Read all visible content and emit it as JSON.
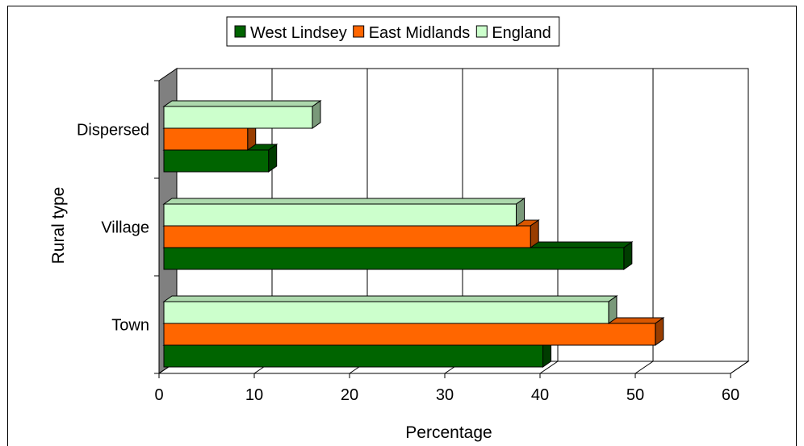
{
  "chart_data": {
    "type": "bar",
    "orientation": "horizontal",
    "categories": [
      "Town",
      "Village",
      "Dispersed"
    ],
    "series": [
      {
        "name": "West Lindsey",
        "values": [
          40.3,
          48.8,
          11.5
        ],
        "color": "#006400"
      },
      {
        "name": "East Midlands",
        "values": [
          52.1,
          39.0,
          9.3
        ],
        "color": "#ff6600"
      },
      {
        "name": "England",
        "values": [
          47.2,
          37.5,
          16.1
        ],
        "color": "#ccffcc"
      }
    ],
    "xlabel": "Percentage",
    "ylabel": "Rural type",
    "xlim": [
      0,
      60
    ],
    "xticks": [
      "0",
      "10",
      "20",
      "30",
      "40",
      "50",
      "60"
    ],
    "grid": true,
    "legend_position": "top-center",
    "style": "3d"
  }
}
